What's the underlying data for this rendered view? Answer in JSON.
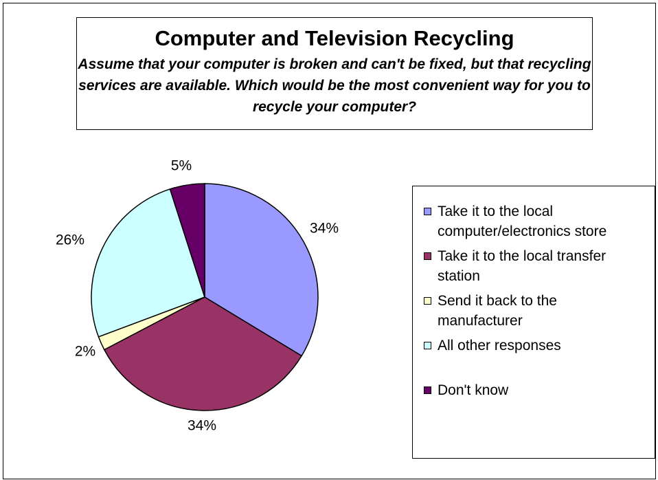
{
  "chart_data": {
    "type": "pie",
    "title": "Computer and Television Recycling",
    "subtitle": "Assume that your computer is broken and can't be fixed, but that recycling services are available.  Which would be the most convenient way for you to recycle your computer?",
    "legend_position": "right",
    "categories": [
      "Take it to the local computer/electronics store",
      "Take it to the local transfer station",
      "Send it back to the manufacturer",
      "All other responses",
      "Don't know"
    ],
    "values": [
      34,
      34,
      2,
      26,
      5
    ],
    "data_labels": [
      "34%",
      "34%",
      "2%",
      "26%",
      "5%"
    ],
    "colors": [
      "#9999FF",
      "#993366",
      "#FFFFCC",
      "#CCFFFF",
      "#660066"
    ]
  }
}
